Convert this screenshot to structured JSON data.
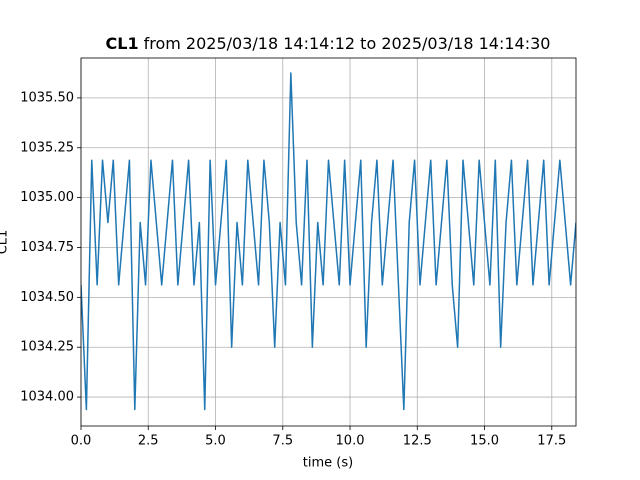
{
  "chart_data": {
    "type": "line",
    "title_name": "CL1",
    "title": "from 2025/03/18 14:14:12 to 2025/03/18 14:14:30",
    "xlabel": "time (s)",
    "ylabel": "CL1",
    "grid": true,
    "xlim": [
      0,
      18.4
    ],
    "ylim": [
      1033.855,
      1035.7
    ],
    "xticks": [
      {
        "value": 0,
        "label": "0.0"
      },
      2.5,
      {
        "value": 5,
        "label": "5.0"
      },
      7.5,
      {
        "value": 10,
        "label": "10.0"
      },
      12.5,
      {
        "value": 15,
        "label": "15.0"
      },
      17.5
    ],
    "yticks": [
      {
        "value": 1034,
        "label": "1034.00"
      },
      1034.25,
      {
        "value": 1034.5,
        "label": "1034.50"
      },
      1034.75,
      {
        "value": 1035,
        "label": "1035.00"
      },
      1035.25,
      {
        "value": 1035.5,
        "label": "1035.50"
      }
    ],
    "x": [
      0,
      0.2,
      0.4,
      0.6,
      0.8,
      1,
      1.2,
      1.4,
      1.6,
      1.8,
      2,
      2.2,
      2.4,
      2.6,
      2.8,
      3,
      3.2,
      3.4,
      3.6,
      3.8,
      4,
      4.2,
      4.4,
      4.6,
      4.8,
      5,
      5.2,
      5.4,
      5.6,
      5.8,
      6,
      6.2,
      6.4,
      6.6,
      6.8,
      7,
      7.2,
      7.4,
      7.6,
      7.8,
      8,
      8.2,
      8.4,
      8.6,
      8.8,
      9,
      9.2,
      9.4,
      9.6,
      9.8,
      10,
      10.2,
      10.4,
      10.6,
      10.8,
      11,
      11.2,
      11.4,
      11.6,
      11.8,
      12,
      12.2,
      12.4,
      12.6,
      12.8,
      13,
      13.2,
      13.4,
      13.6,
      13.8,
      14,
      14.2,
      14.4,
      14.6,
      14.8,
      15,
      15.2,
      15.4,
      15.6,
      15.8,
      16,
      16.2,
      16.4,
      16.6,
      16.8,
      17,
      17.2,
      17.4,
      17.6,
      17.8,
      18,
      18.2,
      18.4
    ],
    "series": [
      {
        "name": "CL1",
        "color": "#1f77b4",
        "values": [
          1034.5625,
          1033.9375,
          1035.1875,
          1034.5625,
          1035.1875,
          1034.875,
          1035.1875,
          1034.5625,
          1034.875,
          1035.1875,
          1033.9375,
          1034.875,
          1034.5625,
          1035.1875,
          1034.875,
          1034.5625,
          1034.875,
          1035.1875,
          1034.5625,
          1034.875,
          1035.1875,
          1034.5625,
          1034.875,
          1033.9375,
          1035.1875,
          1034.5625,
          1034.875,
          1035.1875,
          1034.25,
          1034.875,
          1034.5625,
          1035.1875,
          1034.875,
          1034.5625,
          1035.1875,
          1034.875,
          1034.25,
          1034.875,
          1034.5625,
          1035.625,
          1034.875,
          1034.5625,
          1035.1875,
          1034.25,
          1034.875,
          1034.5625,
          1035.1875,
          1034.875,
          1034.5625,
          1035.1875,
          1034.5625,
          1034.875,
          1035.1875,
          1034.25,
          1034.875,
          1035.1875,
          1034.5625,
          1034.875,
          1035.1875,
          1034.5625,
          1033.9375,
          1034.875,
          1035.1875,
          1034.5625,
          1034.875,
          1035.1875,
          1034.5625,
          1034.875,
          1035.1875,
          1034.5625,
          1034.25,
          1035.1875,
          1034.875,
          1034.5625,
          1035.1875,
          1034.875,
          1034.5625,
          1035.1875,
          1034.25,
          1034.875,
          1035.1875,
          1034.5625,
          1034.875,
          1035.1875,
          1034.5625,
          1034.875,
          1035.1875,
          1034.5625,
          1034.875,
          1035.1875,
          1034.875,
          1034.5625,
          1034.875
        ]
      }
    ]
  }
}
